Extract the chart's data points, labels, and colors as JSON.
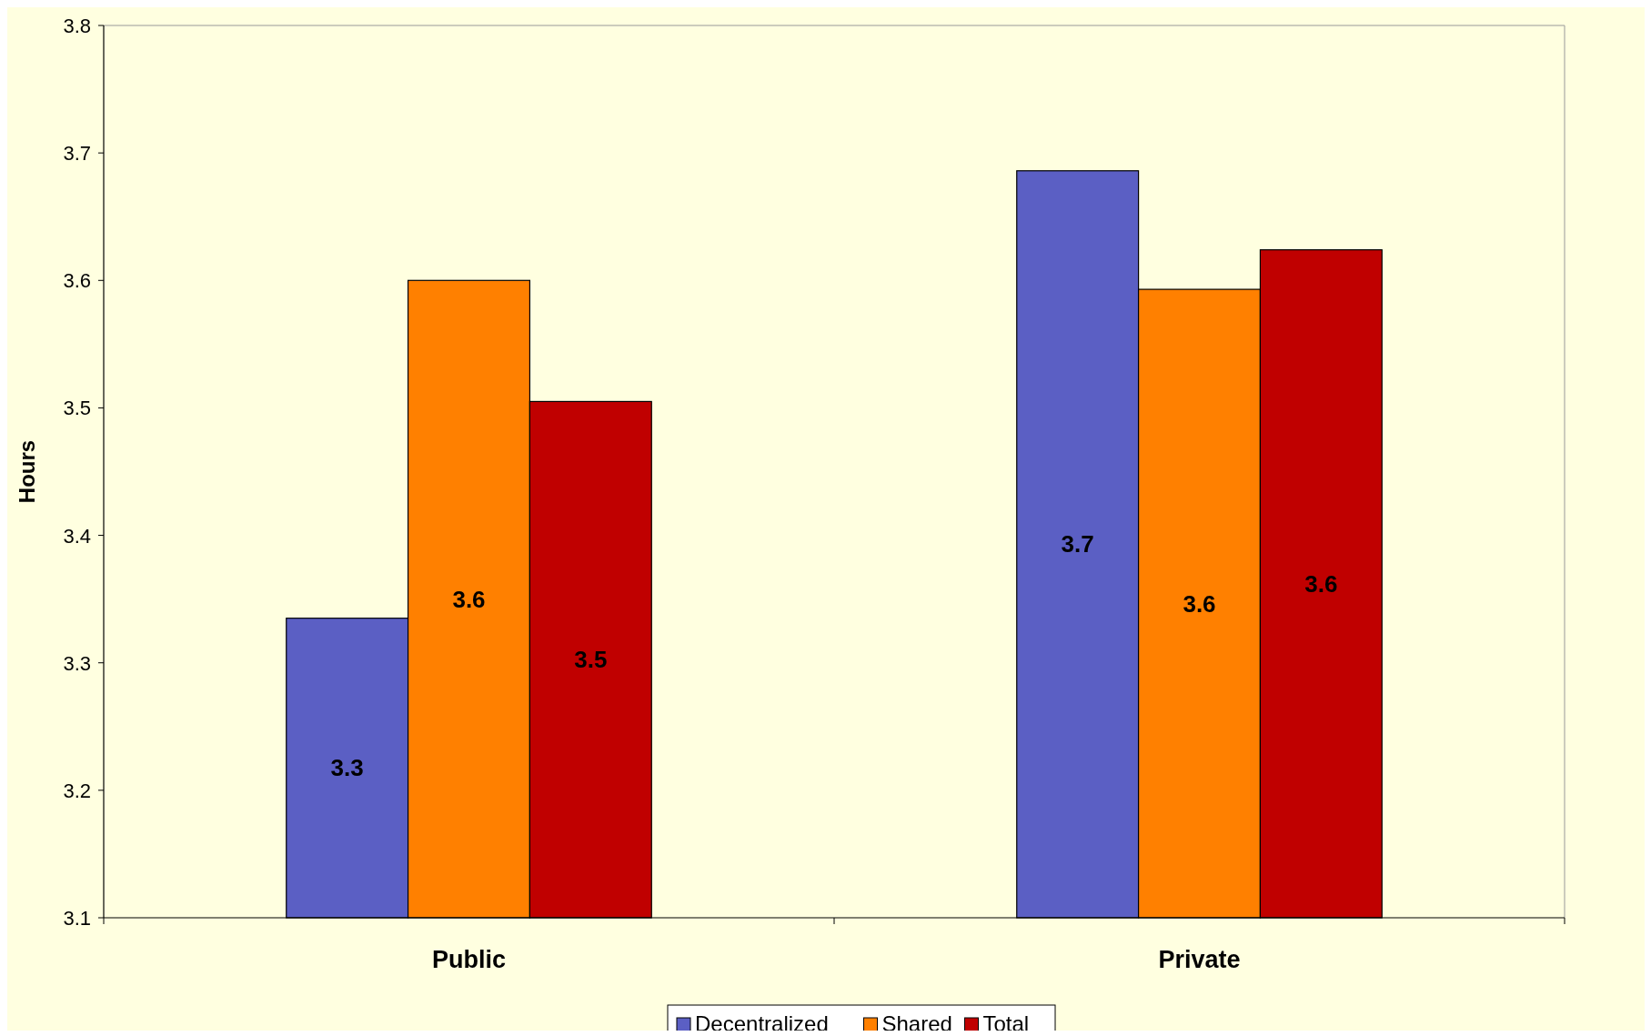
{
  "chart_data": {
    "type": "bar",
    "ylabel": "Hours",
    "categories": [
      "Public",
      "Private"
    ],
    "series": [
      {
        "name": "Decentralized",
        "color": "#5b5fc4",
        "values": [
          3.335,
          3.686
        ],
        "value_labels": [
          "3.3",
          "3.7"
        ]
      },
      {
        "name": "Shared",
        "color": "#ff8000",
        "values": [
          3.6,
          3.593
        ],
        "value_labels": [
          "3.6",
          "3.6"
        ]
      },
      {
        "name": "Total",
        "color": "#c00000",
        "values": [
          3.505,
          3.624
        ],
        "value_labels": [
          "3.5",
          "3.6"
        ]
      }
    ],
    "ylim": [
      3.1,
      3.8
    ],
    "yticks": [
      3.1,
      3.2,
      3.3,
      3.4,
      3.5,
      3.6,
      3.7,
      3.8
    ],
    "grid": false,
    "legend": "bottom"
  }
}
